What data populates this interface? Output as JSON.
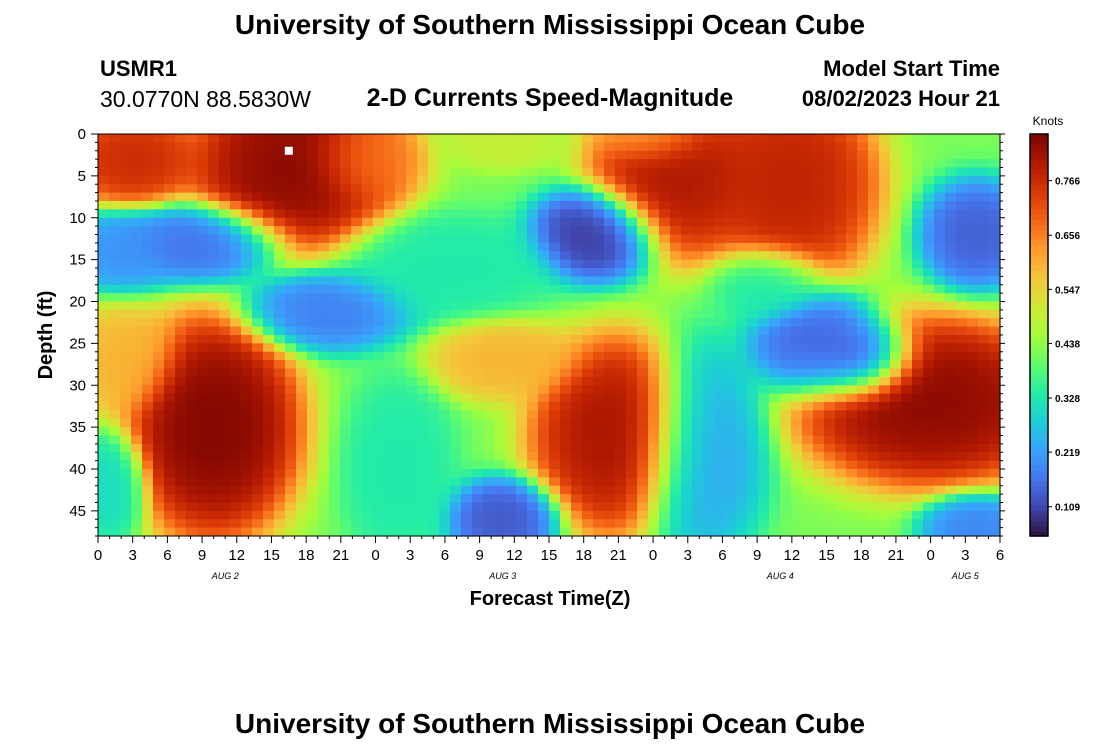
{
  "header": {
    "title": "University of Southern Mississippi Ocean Cube",
    "footer_title": "University of Southern Mississippi Ocean Cube",
    "station_id": "USMR1",
    "coordinates": "30.0770N  88.5830W",
    "subtitle": "2-D Currents Speed-Magnitude",
    "start_label": "Model Start Time",
    "start_value": "08/02/2023 Hour 21"
  },
  "chart_data": {
    "type": "heatmap",
    "xlabel": "Forecast Time(Z)",
    "ylabel": "Depth (ft)",
    "colorbar_label": "Knots",
    "x_range_hours": [
      0,
      78
    ],
    "y_range_ft": [
      0,
      48
    ],
    "y_inverted": true,
    "x_tick_labels": [
      "0",
      "3",
      "6",
      "9",
      "12",
      "15",
      "18",
      "21",
      "0",
      "3",
      "6",
      "9",
      "12",
      "15",
      "18",
      "21",
      "0",
      "3",
      "6",
      "9",
      "12",
      "15",
      "18",
      "21",
      "0",
      "3",
      "6"
    ],
    "y_ticks": [
      0,
      5,
      10,
      15,
      20,
      25,
      30,
      35,
      40,
      45
    ],
    "date_labels": [
      {
        "label": "AUG 2",
        "hour": 11
      },
      {
        "label": "AUG 3",
        "hour": 35
      },
      {
        "label": "AUG 4",
        "hour": 59
      },
      {
        "label": "AUG 5",
        "hour": 75
      }
    ],
    "colorbar_ticks": [
      "0.109",
      "0.219",
      "0.328",
      "0.438",
      "0.547",
      "0.656",
      "0.766"
    ],
    "value_range": [
      0.05,
      0.86
    ],
    "colormap": [
      "#30123b",
      "#4145ab",
      "#4675ed",
      "#39a2fc",
      "#1bcfd4",
      "#24eca6",
      "#61fc6c",
      "#a4fc3b",
      "#d1e834",
      "#f3c63a",
      "#fe9b2d",
      "#f36315",
      "#d93806",
      "#b11901",
      "#7a0402"
    ],
    "marker": {
      "hour": 16.5,
      "depth_ft": 2,
      "color": "#ffffff"
    },
    "field_base": 0.42,
    "field_features": [
      {
        "hour": 3,
        "depth_ft": 3,
        "speed": 0.78,
        "sx_h": 3.5,
        "sy_ft": 3.5
      },
      {
        "hour": 17,
        "depth_ft": 4,
        "speed": 0.86,
        "sx_h": 5.5,
        "sy_ft": 6.5
      },
      {
        "hour": 23,
        "depth_ft": 3,
        "speed": 0.66,
        "sx_h": 3,
        "sy_ft": 3.5
      },
      {
        "hour": 35,
        "depth_ft": 1,
        "speed": 0.5,
        "sx_h": 3,
        "sy_ft": 2
      },
      {
        "hour": 50,
        "depth_ft": 5,
        "speed": 0.82,
        "sx_h": 4.5,
        "sy_ft": 6
      },
      {
        "hour": 60,
        "depth_ft": 6,
        "speed": 0.8,
        "sx_h": 4.5,
        "sy_ft": 7.5
      },
      {
        "hour": 48,
        "depth_ft": 0,
        "speed": 0.6,
        "sx_h": 3,
        "sy_ft": 2.5
      },
      {
        "hour": 9,
        "depth_ft": 13,
        "speed": 0.15,
        "sx_h": 4.5,
        "sy_ft": 3
      },
      {
        "hour": 2,
        "depth_ft": 14,
        "speed": 0.2,
        "sx_h": 3,
        "sy_ft": 3
      },
      {
        "hour": 20,
        "depth_ft": 21,
        "speed": 0.17,
        "sx_h": 4.5,
        "sy_ft": 3
      },
      {
        "hour": 30,
        "depth_ft": 16,
        "speed": 0.33,
        "sx_h": 6,
        "sy_ft": 4
      },
      {
        "hour": 43,
        "depth_ft": 12,
        "speed": 0.08,
        "sx_h": 3.5,
        "sy_ft": 3.5
      },
      {
        "hour": 76,
        "depth_ft": 12,
        "speed": 0.13,
        "sx_h": 3,
        "sy_ft": 4
      },
      {
        "hour": 62,
        "depth_ft": 25,
        "speed": 0.13,
        "sx_h": 3.5,
        "sy_ft": 4
      },
      {
        "hour": 66,
        "depth_ft": 27,
        "speed": 0.06,
        "sx_h": 3,
        "sy_ft": 3
      },
      {
        "hour": 10,
        "depth_ft": 35,
        "speed": 0.87,
        "sx_h": 4.5,
        "sy_ft": 8
      },
      {
        "hour": 2,
        "depth_ft": 27,
        "speed": 0.6,
        "sx_h": 3,
        "sy_ft": 4
      },
      {
        "hour": 45,
        "depth_ft": 36,
        "speed": 0.83,
        "sx_h": 4.5,
        "sy_ft": 7
      },
      {
        "hour": 72,
        "depth_ft": 32,
        "speed": 0.86,
        "sx_h": 7,
        "sy_ft": 6
      },
      {
        "hour": 35,
        "depth_ft": 27,
        "speed": 0.6,
        "sx_h": 4,
        "sy_ft": 3
      },
      {
        "hour": 52,
        "depth_ft": 38,
        "speed": 0.22,
        "sx_h": 3.5,
        "sy_ft": 8
      },
      {
        "hour": 26,
        "depth_ft": 40,
        "speed": 0.33,
        "sx_h": 3,
        "sy_ft": 7
      },
      {
        "hour": 35,
        "depth_ft": 46,
        "speed": 0.12,
        "sx_h": 3,
        "sy_ft": 3
      },
      {
        "hour": 58,
        "depth_ft": 18,
        "speed": 0.32,
        "sx_h": 3,
        "sy_ft": 3
      },
      {
        "hour": 1,
        "depth_ft": 42,
        "speed": 0.3,
        "sx_h": 2,
        "sy_ft": 4
      },
      {
        "hour": 76,
        "depth_ft": 47,
        "speed": 0.18,
        "sx_h": 3,
        "sy_ft": 2.5
      }
    ]
  }
}
